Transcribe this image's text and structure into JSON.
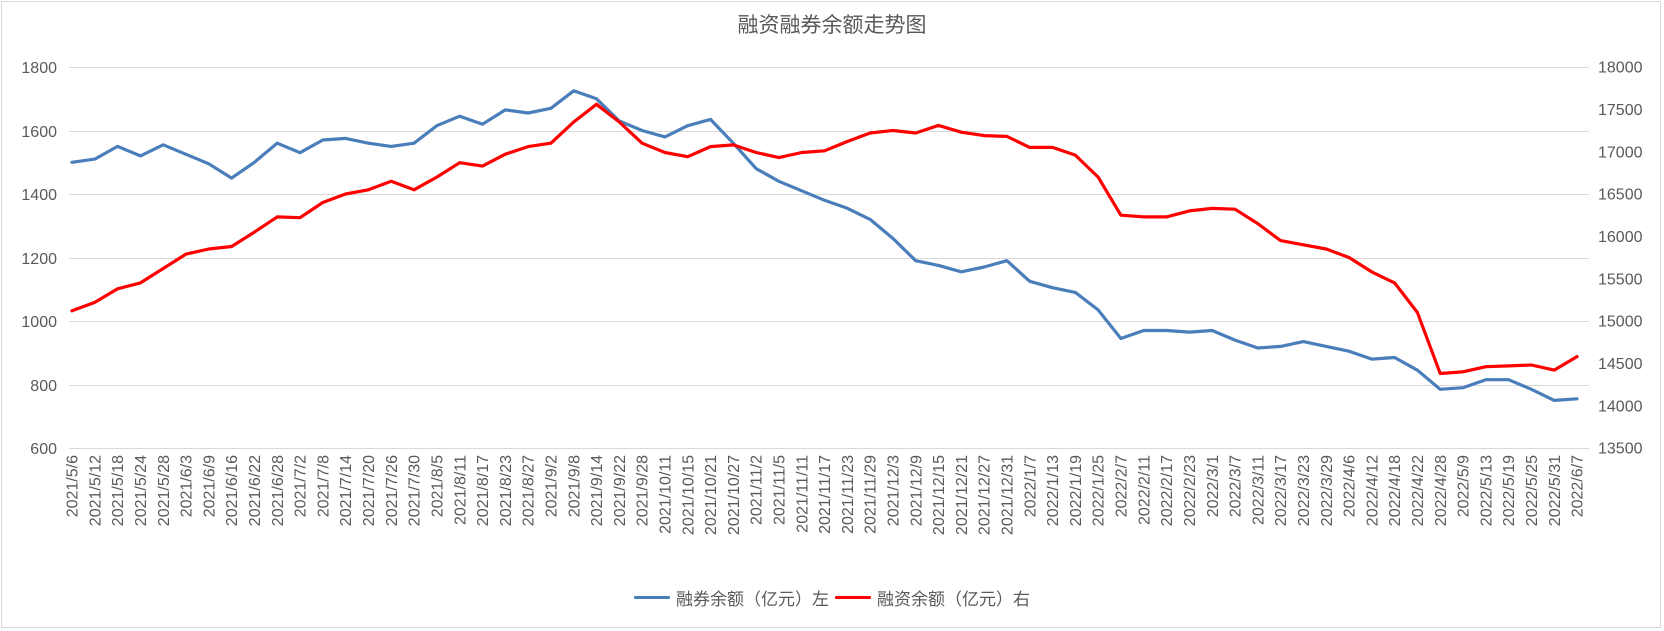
{
  "chart_data": {
    "type": "line",
    "title": "融资融券余额走势图",
    "grid": true,
    "legend": "bottom",
    "categories": [
      "2021/5/6",
      "2021/5/12",
      "2021/5/18",
      "2021/5/24",
      "2021/5/28",
      "2021/6/3",
      "2021/6/9",
      "2021/6/16",
      "2021/6/22",
      "2021/6/28",
      "2021/7/2",
      "2021/7/8",
      "2021/7/14",
      "2021/7/20",
      "2021/7/26",
      "2021/7/30",
      "2021/8/5",
      "2021/8/11",
      "2021/8/17",
      "2021/8/23",
      "2021/8/27",
      "2021/9/2",
      "2021/9/8",
      "2021/9/14",
      "2021/9/22",
      "2021/9/28",
      "2021/10/11",
      "2021/10/15",
      "2021/10/21",
      "2021/10/27",
      "2021/11/2",
      "2021/11/5",
      "2021/11/11",
      "2021/11/17",
      "2021/11/23",
      "2021/11/29",
      "2021/12/3",
      "2021/12/9",
      "2021/12/15",
      "2021/12/21",
      "2021/12/27",
      "2021/12/31",
      "2022/1/7",
      "2022/1/13",
      "2022/1/19",
      "2022/1/25",
      "2022/2/7",
      "2022/2/11",
      "2022/2/17",
      "2022/2/23",
      "2022/3/1",
      "2022/3/7",
      "2022/3/11",
      "2022/3/17",
      "2022/3/23",
      "2022/3/29",
      "2022/4/6",
      "2022/4/12",
      "2022/4/18",
      "2022/4/22",
      "2022/4/28",
      "2022/5/9",
      "2022/5/13",
      "2022/5/19",
      "2022/5/25",
      "2022/5/31",
      "2022/6/7"
    ],
    "y_left": {
      "ylim": [
        600,
        1800
      ],
      "ticks": [
        600,
        800,
        1000,
        1200,
        1400,
        1600,
        1800
      ]
    },
    "y_right": {
      "ylim": [
        13500,
        18000
      ],
      "ticks": [
        13500,
        14000,
        14500,
        15000,
        15500,
        16000,
        16500,
        17000,
        17500,
        18000
      ]
    },
    "series": [
      {
        "name": "融券余额（亿元）左",
        "axis": "left",
        "color": "#4a7ebb",
        "values": [
          1500,
          1510,
          1550,
          1520,
          1555,
          1525,
          1495,
          1450,
          1500,
          1560,
          1530,
          1570,
          1575,
          1560,
          1550,
          1560,
          1615,
          1645,
          1620,
          1665,
          1655,
          1670,
          1725,
          1700,
          1630,
          1600,
          1580,
          1615,
          1635,
          1560,
          1480,
          1440,
          1410,
          1380,
          1355,
          1320,
          1260,
          1190,
          1175,
          1155,
          1170,
          1190,
          1125,
          1105,
          1090,
          1035,
          945,
          970,
          970,
          965,
          970,
          940,
          915,
          920,
          935,
          920,
          905,
          880,
          885,
          845,
          785,
          790,
          815,
          815,
          785,
          750,
          755
        ]
      },
      {
        "name": "融资余额（亿元）右",
        "axis": "right",
        "color": "#ff0000",
        "values": [
          15120,
          15220,
          15380,
          15450,
          15620,
          15790,
          15850,
          15880,
          16050,
          16230,
          16220,
          16400,
          16500,
          16550,
          16650,
          16550,
          16700,
          16870,
          16830,
          16970,
          17060,
          17100,
          17350,
          17560,
          17350,
          17100,
          16990,
          16940,
          17060,
          17080,
          16990,
          16930,
          16990,
          17010,
          17120,
          17220,
          17250,
          17220,
          17310,
          17230,
          17190,
          17180,
          17050,
          17050,
          16960,
          16700,
          16250,
          16230,
          16230,
          16300,
          16330,
          16320,
          16150,
          15950,
          15900,
          15850,
          15750,
          15580,
          15450,
          15100,
          14380,
          14400,
          14460,
          14470,
          14480,
          14420,
          14580
        ]
      }
    ]
  }
}
